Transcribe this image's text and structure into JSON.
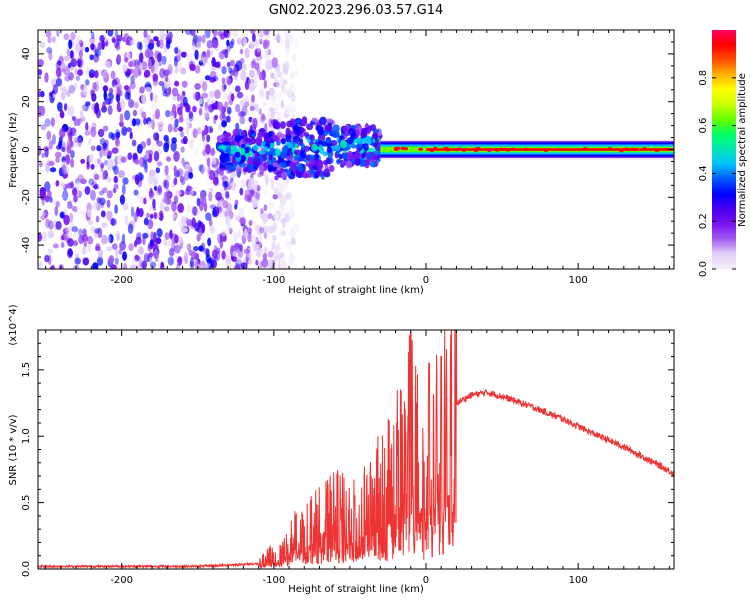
{
  "figure": {
    "title": "GN02.2023.296.03.57.G14"
  },
  "chart_data": [
    {
      "type": "heatmap",
      "title": "GN02.2023.296.03.57.G14",
      "xlabel": "Height of straight line (km)",
      "ylabel": "Frequency (Hz)",
      "xlim": [
        -255,
        163
      ],
      "ylim": [
        -50,
        50
      ],
      "xticks": [
        -200,
        -100,
        0,
        100
      ],
      "yticks": [
        -40,
        -20,
        0,
        20,
        40
      ],
      "colorbar": {
        "label": "Normalized spectral amplitude",
        "ticks": [
          0.0,
          0.2,
          0.4,
          0.6,
          0.8
        ],
        "range": [
          0,
          1
        ],
        "colormap": [
          "#f4eefc",
          "#e2d2f8",
          "#a55cf0",
          "#7a14f0",
          "#4a00f0",
          "#0000ff",
          "#0055ff",
          "#00bfff",
          "#00e6b4",
          "#00ff64",
          "#64ff00",
          "#c8ff00",
          "#ffff00",
          "#ffb400",
          "#ff5000",
          "#ff0000",
          "#ff0064"
        ]
      },
      "regions": [
        {
          "name": "noise",
          "x": [
            -255,
            -110
          ],
          "f_range": [
            -50,
            50
          ],
          "amplitude": 0.15
        },
        {
          "name": "transition",
          "x": [
            -135,
            -30
          ],
          "f_range": [
            -15,
            15
          ],
          "amplitude": 0.35
        },
        {
          "name": "signal",
          "x": [
            -30,
            163
          ],
          "f_center": 0,
          "f_halfwidth": 3,
          "amplitude": 0.95
        }
      ]
    },
    {
      "type": "line",
      "xlabel": "Height of straight line (km)",
      "ylabel": "SNR (10 * v/v)",
      "scale_label": "(x10^4)",
      "xlim": [
        -255,
        163
      ],
      "ylim": [
        0,
        1.8
      ],
      "xticks": [
        -200,
        -100,
        0,
        100
      ],
      "yticks": [
        0.0,
        0.5,
        1.0,
        1.5
      ],
      "color": "#ee3333",
      "series": [
        {
          "x": [
            -255,
            -200,
            -150,
            -110,
            -95,
            -80,
            -60,
            -45,
            -30,
            -20,
            -10,
            0,
            10,
            20,
            30,
            40,
            50,
            70,
            90,
            110,
            130,
            150,
            163
          ],
          "y": [
            0.02,
            0.02,
            0.02,
            0.04,
            0.15,
            0.3,
            0.4,
            0.35,
            0.55,
            0.7,
            1.05,
            0.65,
            0.95,
            1.25,
            1.31,
            1.33,
            1.3,
            1.22,
            1.13,
            1.02,
            0.92,
            0.8,
            0.72
          ],
          "peaks": [
            {
              "x": -10,
              "y": 1.78
            },
            {
              "x": 10,
              "y": 1.6
            },
            {
              "x": 2,
              "y": 1.55
            }
          ]
        }
      ]
    }
  ]
}
